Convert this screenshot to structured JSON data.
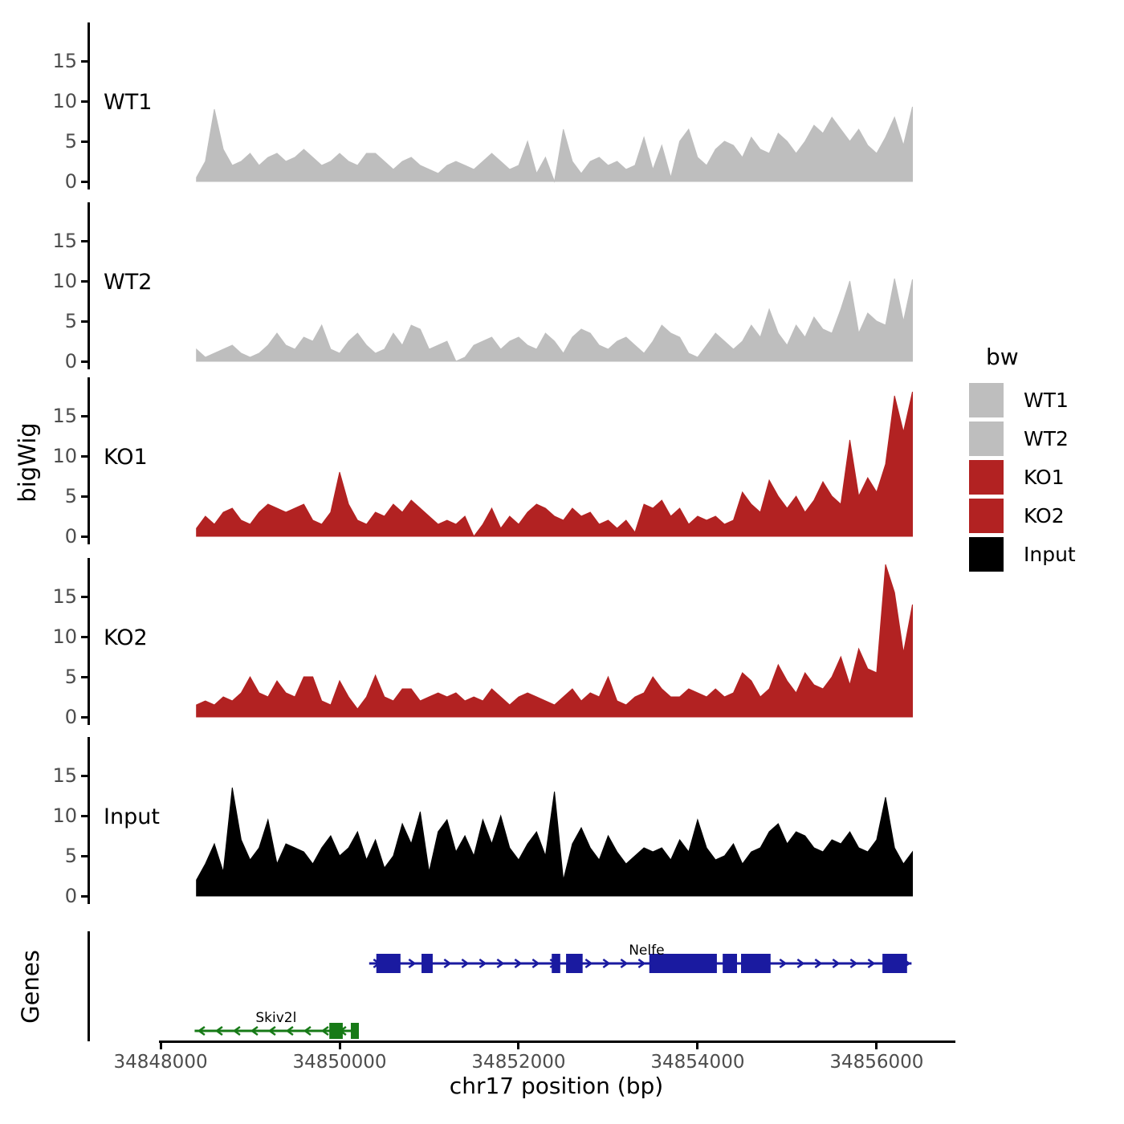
{
  "chart_data": {
    "type": "area",
    "ylabel": "bigWig",
    "genes_ylabel": "Genes",
    "xlabel": "chr17 position (bp)",
    "x_domain": [
      34847210,
      34856880
    ],
    "x_ticks": [
      34848000,
      34850000,
      34852000,
      34854000,
      34856000
    ],
    "x_tick_labels": [
      "34848000",
      "34850000",
      "34852000",
      "34854000",
      "34856000"
    ],
    "ylim": [
      0,
      20
    ],
    "y_ticks": [
      0,
      5,
      10,
      15
    ],
    "x_start": 34848400,
    "x_step": 100,
    "series": [
      {
        "name": "WT1",
        "color": "#BEBEBE",
        "values": [
          0.5,
          2.5,
          9,
          4,
          2,
          2.5,
          3.5,
          2,
          3,
          3.5,
          2.5,
          3,
          4,
          3,
          2,
          2.5,
          3.5,
          2.5,
          2,
          3.5,
          3.5,
          2.5,
          1.5,
          2.5,
          3,
          2,
          1.5,
          1,
          2,
          2.5,
          2,
          1.5,
          2.5,
          3.5,
          2.5,
          1.5,
          2,
          5,
          1,
          3,
          0,
          6.5,
          2.5,
          1,
          2.5,
          3,
          2,
          2.5,
          1.5,
          2,
          5.5,
          1.5,
          4.5,
          0.5,
          5,
          6.5,
          3,
          2,
          4,
          5,
          4.5,
          3,
          5.5,
          4,
          3.5,
          6,
          5,
          3.5,
          5,
          7,
          6,
          8,
          6.5,
          5,
          6.5,
          4.5,
          3.5,
          5.5,
          8,
          4.5,
          9.3
        ]
      },
      {
        "name": "WT2",
        "color": "#BEBEBE",
        "values": [
          1.5,
          0.5,
          1,
          1.5,
          2,
          1,
          0.5,
          1,
          2,
          3.5,
          2,
          1.5,
          3,
          2.5,
          4.5,
          1.5,
          1,
          2.5,
          3.5,
          2,
          1,
          1.5,
          3.5,
          2,
          4.5,
          4,
          1.5,
          2,
          2.5,
          0,
          0.5,
          2,
          2.5,
          3,
          1.5,
          2.5,
          3,
          2,
          1.5,
          3.5,
          2.5,
          1,
          3,
          4,
          3.5,
          2,
          1.5,
          2.5,
          3,
          2,
          1,
          2.5,
          4.5,
          3.5,
          3,
          1,
          0.5,
          2,
          3.5,
          2.5,
          1.5,
          2.5,
          4.5,
          3,
          6.5,
          3.5,
          2,
          4.5,
          3,
          5.5,
          4,
          3.5,
          6.5,
          10,
          3.5,
          6,
          5,
          4.5,
          10.3,
          5,
          10.2
        ]
      },
      {
        "name": "KO1",
        "color": "#B22222",
        "values": [
          1,
          2.5,
          1.5,
          3,
          3.5,
          2,
          1.5,
          3,
          4,
          3.5,
          3,
          3.5,
          4,
          2,
          1.5,
          3,
          8,
          4,
          2,
          1.5,
          3,
          2.5,
          4,
          3,
          4.5,
          3.5,
          2.5,
          1.5,
          2,
          1.5,
          2.5,
          0,
          1.5,
          3.5,
          1,
          2.5,
          1.5,
          3,
          4,
          3.5,
          2.5,
          2,
          3.5,
          2.5,
          3,
          1.5,
          2,
          1,
          2,
          0.5,
          4,
          3.5,
          4.5,
          2.5,
          3.5,
          1.5,
          2.5,
          2,
          2.5,
          1.5,
          2,
          5.5,
          4,
          3,
          7,
          5,
          3.5,
          5,
          3,
          4.5,
          6.8,
          5,
          4,
          12,
          5,
          7.3,
          5.5,
          9,
          17.5,
          13,
          18
        ]
      },
      {
        "name": "KO2",
        "color": "#B22222",
        "values": [
          1.5,
          2,
          1.5,
          2.5,
          2,
          3,
          5,
          3,
          2.5,
          4.5,
          3,
          2.5,
          5,
          5,
          2,
          1.5,
          4.5,
          2.5,
          1,
          2.5,
          5.2,
          2.5,
          2,
          3.5,
          3.5,
          2,
          2.5,
          3,
          2.5,
          3,
          2,
          2.5,
          2,
          3.5,
          2.5,
          1.5,
          2.5,
          3,
          2.5,
          2,
          1.5,
          2.5,
          3.5,
          2,
          3,
          2.5,
          5,
          2,
          1.5,
          2.5,
          3,
          5,
          3.5,
          2.5,
          2.5,
          3.5,
          3,
          2.5,
          3.5,
          2.5,
          3,
          5.5,
          4.5,
          2.5,
          3.5,
          6.5,
          4.5,
          3,
          5.5,
          4,
          3.5,
          5,
          7.5,
          4,
          8.5,
          6,
          5.5,
          19,
          15.5,
          8,
          14
        ]
      },
      {
        "name": "Input",
        "color": "#000000",
        "values": [
          2,
          4,
          6.5,
          3,
          13.5,
          7,
          4.5,
          6,
          9.5,
          4,
          6.5,
          6,
          5.5,
          4,
          6,
          7.5,
          5,
          6,
          8,
          4.5,
          7,
          3.5,
          5,
          9,
          6.5,
          10.5,
          3,
          8,
          9.5,
          5.5,
          7.5,
          5,
          9.5,
          6.5,
          10,
          6,
          4.5,
          6.5,
          8,
          5,
          13,
          2,
          6.5,
          8.5,
          6,
          4.5,
          7.5,
          5.5,
          4,
          5,
          6,
          5.5,
          6,
          4.5,
          7,
          5.5,
          9.5,
          6,
          4.5,
          5,
          6.5,
          4,
          5.5,
          6,
          8,
          9,
          6.5,
          8,
          7.5,
          6,
          5.5,
          7,
          6.5,
          8,
          6,
          5.5,
          7,
          12.3,
          6,
          4,
          5.5
        ]
      }
    ],
    "genes": [
      {
        "name": "Nelfe",
        "strand": "+",
        "color": "#1A1AA0",
        "start": 34850330,
        "end": 34856390,
        "row": 0,
        "label_x": 34853430,
        "exons": [
          [
            34850410,
            34850680
          ],
          [
            34850915,
            34851040
          ],
          [
            34852370,
            34852465
          ],
          [
            34852530,
            34852715
          ],
          [
            34853460,
            34854215
          ],
          [
            34854280,
            34854440
          ],
          [
            34854485,
            34854815
          ],
          [
            34856065,
            34856340
          ]
        ]
      },
      {
        "name": "Skiv2l",
        "strand": "-",
        "color": "#177A17",
        "start": 34848380,
        "end": 34850215,
        "row": 1,
        "label_x": 34849290,
        "exons": [
          [
            34849885,
            34850035
          ],
          [
            34850125,
            34850215
          ]
        ]
      }
    ]
  },
  "legend": {
    "title": "bw",
    "entries": [
      {
        "label": "WT1",
        "color": "#BEBEBE"
      },
      {
        "label": "WT2",
        "color": "#BEBEBE"
      },
      {
        "label": "KO1",
        "color": "#B22222"
      },
      {
        "label": "KO2",
        "color": "#B22222"
      },
      {
        "label": "Input",
        "color": "#000000"
      }
    ]
  }
}
